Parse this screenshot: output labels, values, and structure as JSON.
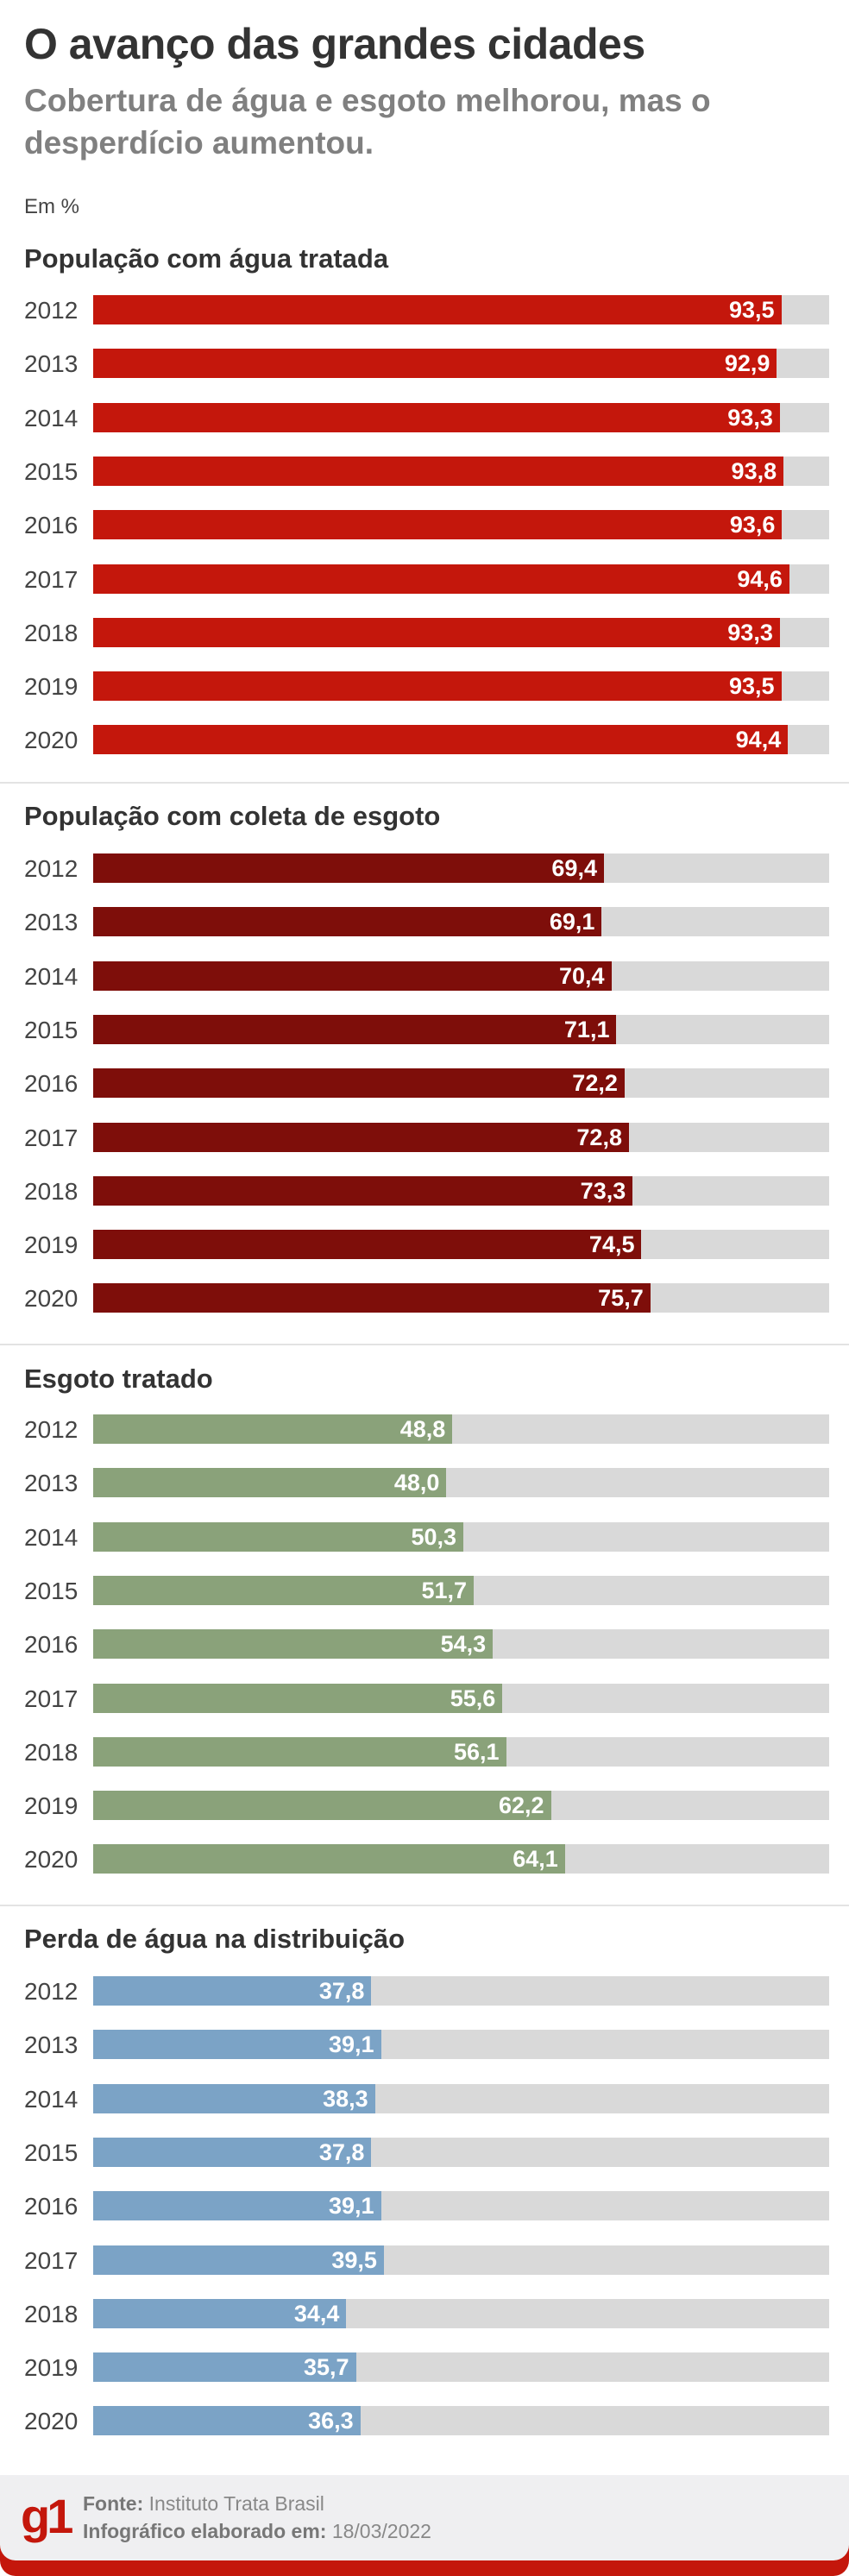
{
  "header": {
    "title": "O avanço das grandes cidades",
    "subtitle": "Cobertura de água e esgoto melhorou, mas o desperdício aumentou.",
    "unit": "Em %"
  },
  "chart_data": [
    {
      "type": "bar",
      "orientation": "horizontal",
      "title": "População com água tratada",
      "color": "#c4170c",
      "xlim": [
        0,
        100
      ],
      "categories": [
        "2012",
        "2013",
        "2014",
        "2015",
        "2016",
        "2017",
        "2018",
        "2019",
        "2020"
      ],
      "values": [
        93.5,
        92.9,
        93.3,
        93.8,
        93.6,
        94.6,
        93.3,
        93.5,
        94.4
      ],
      "labels": [
        "93,5",
        "92,9",
        "93,3",
        "93,8",
        "93,6",
        "94,6",
        "93,3",
        "93,5",
        "94,4"
      ]
    },
    {
      "type": "bar",
      "orientation": "horizontal",
      "title": "População com coleta de esgoto",
      "color": "#7e0e0a",
      "xlim": [
        0,
        100
      ],
      "categories": [
        "2012",
        "2013",
        "2014",
        "2015",
        "2016",
        "2017",
        "2018",
        "2019",
        "2020"
      ],
      "values": [
        69.4,
        69.1,
        70.4,
        71.1,
        72.2,
        72.8,
        73.3,
        74.5,
        75.7
      ],
      "labels": [
        "69,4",
        "69,1",
        "70,4",
        "71,1",
        "72,2",
        "72,8",
        "73,3",
        "74,5",
        "75,7"
      ]
    },
    {
      "type": "bar",
      "orientation": "horizontal",
      "title": "Esgoto tratado",
      "color": "#8aa27a",
      "xlim": [
        0,
        100
      ],
      "categories": [
        "2012",
        "2013",
        "2014",
        "2015",
        "2016",
        "2017",
        "2018",
        "2019",
        "2020"
      ],
      "values": [
        48.8,
        48.0,
        50.3,
        51.7,
        54.3,
        55.6,
        56.1,
        62.2,
        64.1
      ],
      "labels": [
        "48,8",
        "48,0",
        "50,3",
        "51,7",
        "54,3",
        "55,6",
        "56,1",
        "62,2",
        "64,1"
      ]
    },
    {
      "type": "bar",
      "orientation": "horizontal",
      "title": "Perda de água na distribuição",
      "color": "#7ba3c6",
      "xlim": [
        0,
        100
      ],
      "categories": [
        "2012",
        "2013",
        "2014",
        "2015",
        "2016",
        "2017",
        "2018",
        "2019",
        "2020"
      ],
      "values": [
        37.8,
        39.1,
        38.3,
        37.8,
        39.1,
        39.5,
        34.4,
        35.7,
        36.3
      ],
      "labels": [
        "37,8",
        "39,1",
        "38,3",
        "37,8",
        "39,1",
        "39,5",
        "34,4",
        "35,7",
        "36,3"
      ]
    }
  ],
  "footer": {
    "logo": "g1",
    "source_label": "Fonte:",
    "source": "Instituto Trata Brasil",
    "date_label": "Infográfico elaborado em:",
    "date": "18/03/2022"
  }
}
